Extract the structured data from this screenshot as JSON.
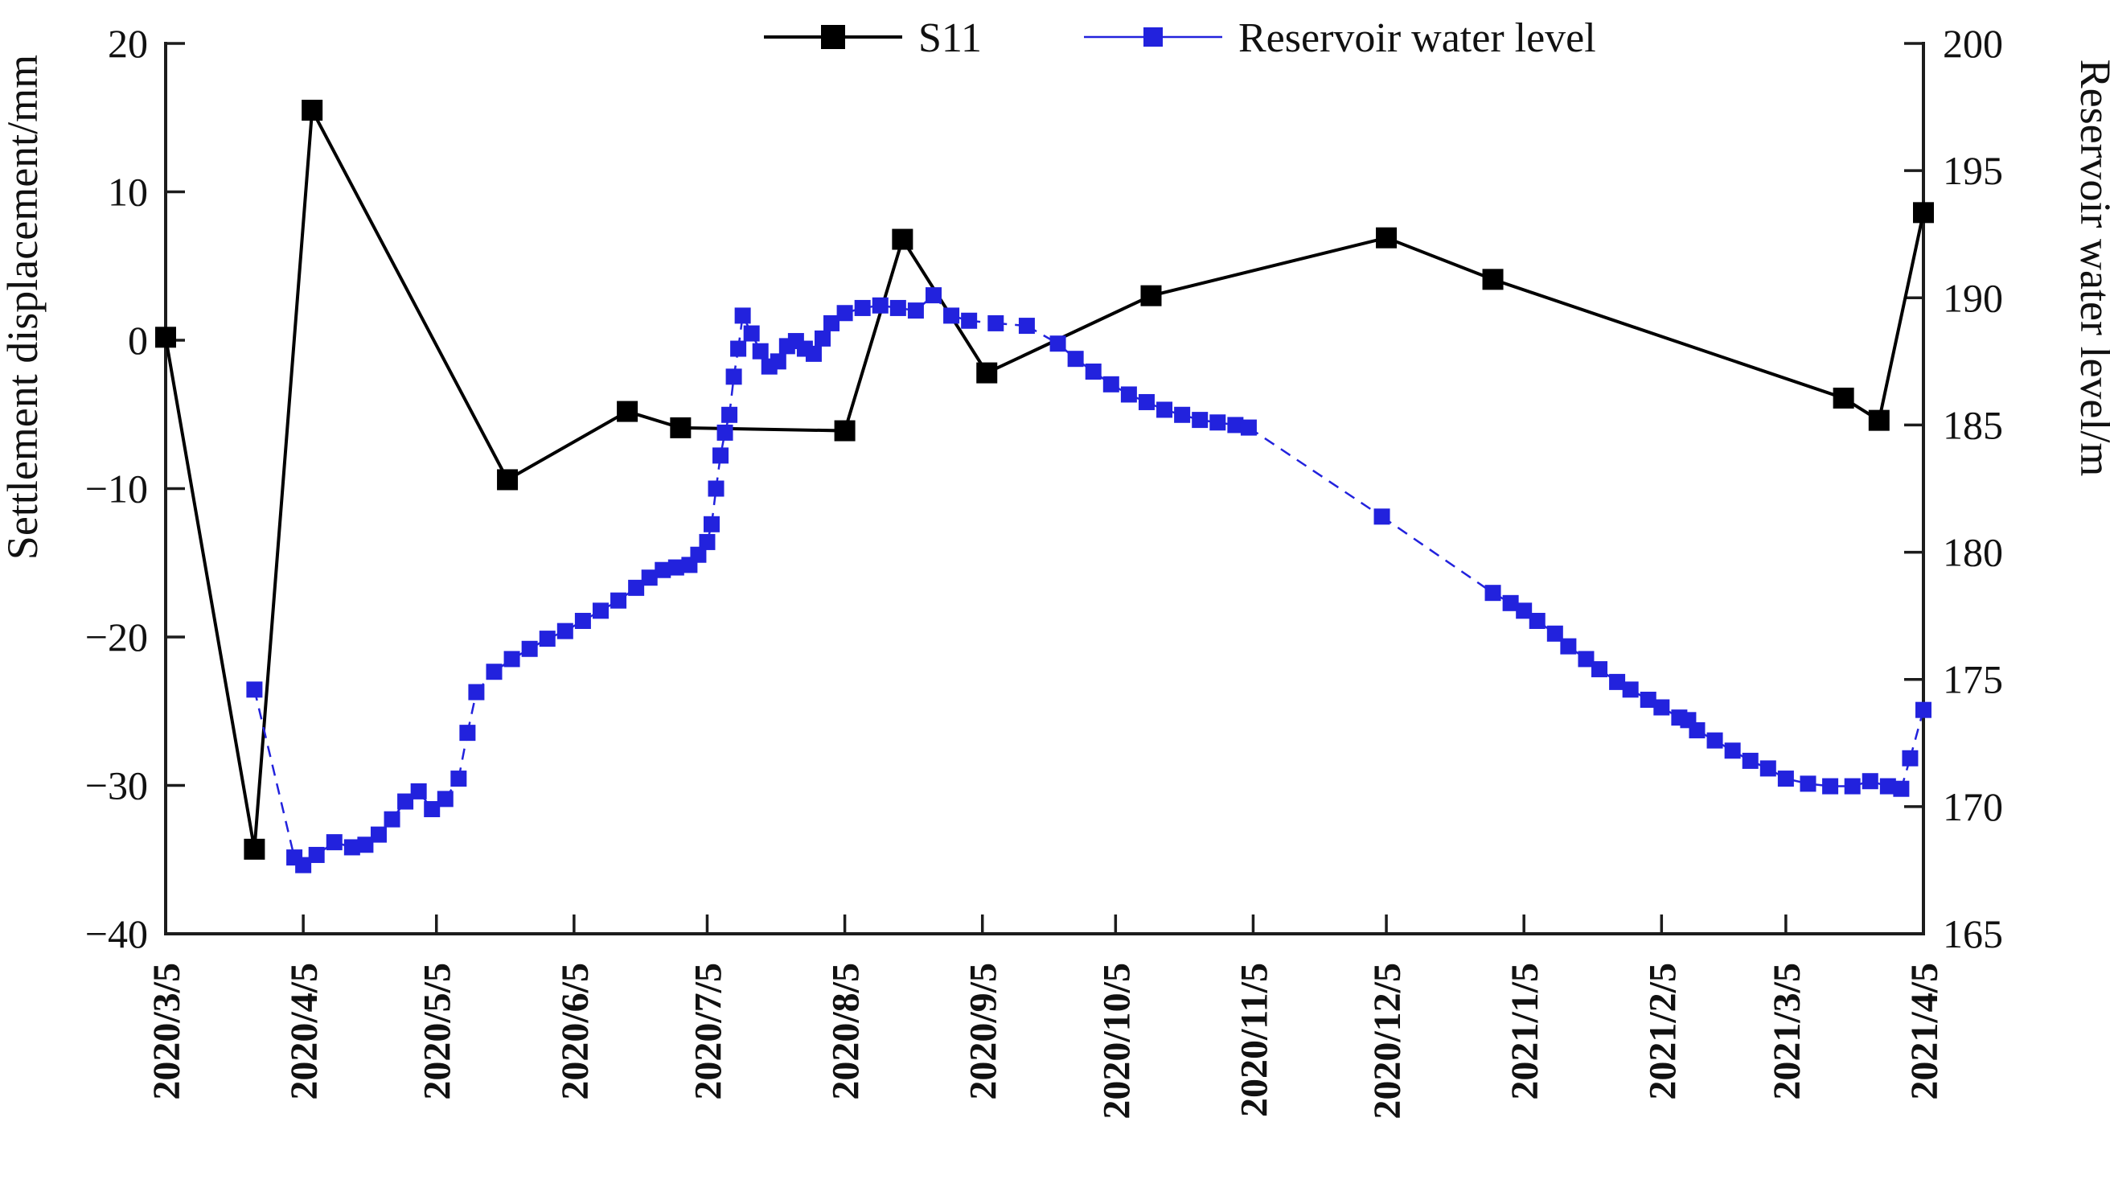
{
  "page": {
    "background": "#ffffff"
  },
  "chart_data": {
    "type": "line",
    "title": "",
    "legend": [
      "S11",
      "Reservoir water level"
    ],
    "legend_position": "top-center",
    "grid": false,
    "x_axis": {
      "start": "2020/3/5",
      "end": "2021/4/5",
      "tick_labels": [
        "2020/3/5",
        "2020/4/5",
        "2020/5/5",
        "2020/6/5",
        "2020/7/5",
        "2020/8/5",
        "2020/9/5",
        "2020/10/5",
        "2020/11/5",
        "2020/12/5",
        "2021/1/5",
        "2021/2/5",
        "2021/3/5",
        "2021/4/5"
      ]
    },
    "y_left": {
      "label": "Settlement displacement/mm",
      "min": -40,
      "max": 20,
      "ticks": [
        {
          "v": 20,
          "label": "20"
        },
        {
          "v": 10,
          "label": "10"
        },
        {
          "v": 0,
          "label": "0"
        },
        {
          "v": -10,
          "label": "−10"
        },
        {
          "v": -20,
          "label": "−20"
        },
        {
          "v": -30,
          "label": "−30"
        },
        {
          "v": -40,
          "label": "−40"
        }
      ]
    },
    "y_right": {
      "label": "Reservoir water level/m",
      "min": 165,
      "max": 200,
      "ticks": [
        {
          "v": 200,
          "label": "200"
        },
        {
          "v": 195,
          "label": "195"
        },
        {
          "v": 190,
          "label": "190"
        },
        {
          "v": 185,
          "label": "185"
        },
        {
          "v": 180,
          "label": "180"
        },
        {
          "v": 175,
          "label": "175"
        },
        {
          "v": 170,
          "label": "170"
        },
        {
          "v": 165,
          "label": "165"
        }
      ]
    },
    "series": [
      {
        "name": "S11",
        "axis": "left",
        "color": "#000000",
        "marker": "square",
        "marker_size": 26,
        "line_width": 4,
        "line_style": "solid",
        "points": [
          [
            "2020/3/5",
            0.2
          ],
          [
            "2020/3/25",
            -34.3
          ],
          [
            "2020/4/7",
            15.5
          ],
          [
            "2020/5/21",
            -9.4
          ],
          [
            "2020/6/17",
            -4.8
          ],
          [
            "2020/6/29",
            -5.9
          ],
          [
            "2020/8/5",
            -6.1
          ],
          [
            "2020/8/18",
            6.8
          ],
          [
            "2020/9/6",
            -2.2
          ],
          [
            "2020/10/13",
            3.0
          ],
          [
            "2020/12/5",
            6.9
          ],
          [
            "2020/12/29",
            4.1
          ],
          [
            "2021/3/18",
            -3.9
          ],
          [
            "2021/3/26",
            -5.4
          ],
          [
            "2021/4/5",
            8.6
          ]
        ]
      },
      {
        "name": "Reservoir water level",
        "axis": "right",
        "color": "#2222dd",
        "marker": "square",
        "marker_size": 20,
        "line_width": 2.5,
        "line_style": "dashed-gaps",
        "points": [
          [
            "2020/3/25",
            174.6
          ],
          [
            "2020/4/3",
            168.0
          ],
          [
            "2020/4/5",
            167.7
          ],
          [
            "2020/4/8",
            168.1
          ],
          [
            "2020/4/12",
            168.6
          ],
          [
            "2020/4/16",
            168.4
          ],
          [
            "2020/4/19",
            168.5
          ],
          [
            "2020/4/22",
            168.9
          ],
          [
            "2020/4/25",
            169.5
          ],
          [
            "2020/4/28",
            170.2
          ],
          [
            "2020/5/1",
            170.6
          ],
          [
            "2020/5/4",
            169.9
          ],
          [
            "2020/5/7",
            170.3
          ],
          [
            "2020/5/10",
            171.1
          ],
          [
            "2020/5/12",
            172.9
          ],
          [
            "2020/5/14",
            174.5
          ],
          [
            "2020/5/18",
            175.3
          ],
          [
            "2020/5/22",
            175.8
          ],
          [
            "2020/5/26",
            176.2
          ],
          [
            "2020/5/30",
            176.6
          ],
          [
            "2020/6/3",
            176.9
          ],
          [
            "2020/6/7",
            177.3
          ],
          [
            "2020/6/11",
            177.7
          ],
          [
            "2020/6/15",
            178.1
          ],
          [
            "2020/6/19",
            178.6
          ],
          [
            "2020/6/22",
            179.0
          ],
          [
            "2020/6/25",
            179.3
          ],
          [
            "2020/6/28",
            179.4
          ],
          [
            "2020/7/1",
            179.5
          ],
          [
            "2020/7/3",
            179.9
          ],
          [
            "2020/7/5",
            180.4
          ],
          [
            "2020/7/6",
            181.1
          ],
          [
            "2020/7/7",
            182.5
          ],
          [
            "2020/7/8",
            183.8
          ],
          [
            "2020/7/9",
            184.7
          ],
          [
            "2020/7/10",
            185.4
          ],
          [
            "2020/7/11",
            186.9
          ],
          [
            "2020/7/12",
            188.0
          ],
          [
            "2020/7/13",
            189.3
          ],
          [
            "2020/7/15",
            188.6
          ],
          [
            "2020/7/17",
            187.9
          ],
          [
            "2020/7/19",
            187.3
          ],
          [
            "2020/7/21",
            187.5
          ],
          [
            "2020/7/23",
            188.1
          ],
          [
            "2020/7/25",
            188.3
          ],
          [
            "2020/7/27",
            188.0
          ],
          [
            "2020/7/29",
            187.8
          ],
          [
            "2020/7/31",
            188.4
          ],
          [
            "2020/8/2",
            189.0
          ],
          [
            "2020/8/5",
            189.4
          ],
          [
            "2020/8/9",
            189.6
          ],
          [
            "2020/8/13",
            189.7
          ],
          [
            "2020/8/17",
            189.6
          ],
          [
            "2020/8/21",
            189.5
          ],
          [
            "2020/8/25",
            190.1
          ],
          [
            "2020/8/29",
            189.3
          ],
          [
            "2020/9/2",
            189.1
          ],
          [
            "2020/9/8",
            189.0
          ],
          [
            "2020/9/15",
            188.9
          ],
          [
            "2020/9/22",
            188.2
          ],
          [
            "2020/9/26",
            187.6
          ],
          [
            "2020/9/30",
            187.1
          ],
          [
            "2020/10/4",
            186.6
          ],
          [
            "2020/10/8",
            186.2
          ],
          [
            "2020/10/12",
            185.9
          ],
          [
            "2020/10/16",
            185.6
          ],
          [
            "2020/10/20",
            185.4
          ],
          [
            "2020/10/24",
            185.2
          ],
          [
            "2020/10/28",
            185.1
          ],
          [
            "2020/11/1",
            185.0
          ],
          [
            "2020/11/4",
            184.9
          ],
          [
            "2020/12/4",
            181.4
          ],
          [
            "2020/12/29",
            178.4
          ],
          [
            "2021/1/2",
            178.0
          ],
          [
            "2021/1/5",
            177.7
          ],
          [
            "2021/1/8",
            177.3
          ],
          [
            "2021/1/12",
            176.8
          ],
          [
            "2021/1/15",
            176.3
          ],
          [
            "2021/1/19",
            175.8
          ],
          [
            "2021/1/22",
            175.4
          ],
          [
            "2021/1/26",
            174.9
          ],
          [
            "2021/1/29",
            174.6
          ],
          [
            "2021/2/2",
            174.2
          ],
          [
            "2021/2/5",
            173.9
          ],
          [
            "2021/2/9",
            173.5
          ],
          [
            "2021/2/11",
            173.4
          ],
          [
            "2021/2/13",
            173.0
          ],
          [
            "2021/2/17",
            172.6
          ],
          [
            "2021/2/21",
            172.2
          ],
          [
            "2021/2/25",
            171.8
          ],
          [
            "2021/3/1",
            171.5
          ],
          [
            "2021/3/5",
            171.1
          ],
          [
            "2021/3/10",
            170.9
          ],
          [
            "2021/3/15",
            170.8
          ],
          [
            "2021/3/20",
            170.8
          ],
          [
            "2021/3/24",
            171.0
          ],
          [
            "2021/3/28",
            170.8
          ],
          [
            "2021/3/31",
            170.7
          ],
          [
            "2021/4/2",
            171.9
          ],
          [
            "2021/4/5",
            173.8
          ]
        ]
      }
    ]
  }
}
